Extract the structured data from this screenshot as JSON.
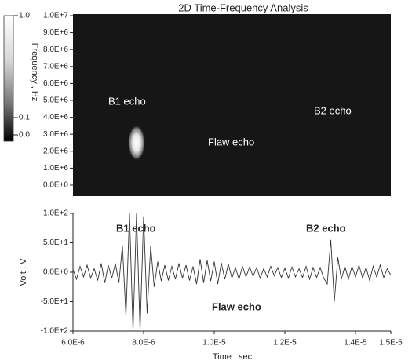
{
  "chart_data": [
    {
      "type": "heatmap",
      "title": "2D Time-Frequency Analysis",
      "xlim": [
        6e-06,
        1.5e-05
      ],
      "ylim": [
        0,
        10000000
      ],
      "yticks": [
        {
          "value": 0,
          "label": "0.0E+0"
        },
        {
          "value": 1000000,
          "label": "1.0E+6"
        },
        {
          "value": 2000000,
          "label": "2.0E+6"
        },
        {
          "value": 3000000,
          "label": "3.0E+6"
        },
        {
          "value": 4000000,
          "label": "4.0E+6"
        },
        {
          "value": 5000000,
          "label": "5.0E+6"
        },
        {
          "value": 6000000,
          "label": "6.0E+6"
        },
        {
          "value": 7000000,
          "label": "7.0E+6"
        },
        {
          "value": 8000000,
          "label": "8.0E+6"
        },
        {
          "value": 9000000,
          "label": "9.0E+6"
        },
        {
          "value": 10000000,
          "label": "1.0E+7"
        }
      ],
      "spots": {
        "x": [
          7.8e-06
        ],
        "y": [
          2500000
        ],
        "values": [
          1.0
        ]
      },
      "colorbar": {
        "label": "Frequency , Hz",
        "ticks": [
          {
            "value": 1,
            "label": "1.0"
          },
          {
            "value": 0.1,
            "label": "0.1"
          },
          {
            "value": 0,
            "label": "0.0"
          }
        ]
      },
      "annotations": [
        "B1 echo",
        "Flaw echo",
        "B2 echo"
      ]
    },
    {
      "type": "line",
      "xlabel": "Time , sec",
      "ylabel": "Volt , V",
      "color": "#333333",
      "xlim": [
        6e-06,
        1.5e-05
      ],
      "ylim": [
        -100,
        100
      ],
      "xticks": [
        {
          "value": 6e-06,
          "label": "6.0E-6"
        },
        {
          "value": 8e-06,
          "label": "8.0E-6"
        },
        {
          "value": 1e-05,
          "label": "1.0E-5"
        },
        {
          "value": 1.2e-05,
          "label": "1.2E-5"
        },
        {
          "value": 1.4e-05,
          "label": "1.4E-5"
        },
        {
          "value": 1.5e-05,
          "label": "1.5E-5"
        }
      ],
      "yticks": [
        {
          "value": -100,
          "label": "-1.0E+2"
        },
        {
          "value": -50,
          "label": "-5.0E+1"
        },
        {
          "value": 0,
          "label": "0.0E+0"
        },
        {
          "value": 50,
          "label": "5.0E+1"
        },
        {
          "value": 100,
          "label": "1.0E+2"
        }
      ],
      "x": [
        6e-06,
        6.1e-06,
        6.2e-06,
        6.3e-06,
        6.4e-06,
        6.5e-06,
        6.6e-06,
        6.7e-06,
        6.8e-06,
        6.9e-06,
        7e-06,
        7.1e-06,
        7.2e-06,
        7.3e-06,
        7.4e-06,
        7.5e-06,
        7.6e-06,
        7.7e-06,
        7.8e-06,
        7.9e-06,
        8e-06,
        8.1e-06,
        8.2e-06,
        8.3e-06,
        8.4e-06,
        8.5e-06,
        8.6e-06,
        8.7e-06,
        8.8e-06,
        8.9e-06,
        9e-06,
        9.1e-06,
        9.2e-06,
        9.3e-06,
        9.4e-06,
        9.5e-06,
        9.6e-06,
        9.7e-06,
        9.8e-06,
        9.9e-06,
        1e-05,
        1.01e-05,
        1.02e-05,
        1.03e-05,
        1.04e-05,
        1.05e-05,
        1.06e-05,
        1.07e-05,
        1.08e-05,
        1.09e-05,
        1.1e-05,
        1.11e-05,
        1.12e-05,
        1.13e-05,
        1.14e-05,
        1.15e-05,
        1.16e-05,
        1.17e-05,
        1.18e-05,
        1.19e-05,
        1.2e-05,
        1.21e-05,
        1.22e-05,
        1.23e-05,
        1.24e-05,
        1.25e-05,
        1.26e-05,
        1.27e-05,
        1.28e-05,
        1.29e-05,
        1.3e-05,
        1.31e-05,
        1.32e-05,
        1.33e-05,
        1.34e-05,
        1.35e-05,
        1.36e-05,
        1.37e-05,
        1.38e-05,
        1.39e-05,
        1.4e-05,
        1.41e-05,
        1.42e-05,
        1.43e-05,
        1.44e-05,
        1.45e-05,
        1.46e-05,
        1.47e-05,
        1.48e-05,
        1.49e-05,
        1.5e-05
      ],
      "values": [
        5,
        -12,
        10,
        -8,
        12,
        -10,
        6,
        -14,
        15,
        -18,
        12,
        -10,
        15,
        -18,
        45,
        -75,
        100,
        -100,
        100,
        -100,
        95,
        -70,
        45,
        -25,
        18,
        -15,
        12,
        -14,
        10,
        -12,
        15,
        -10,
        12,
        -14,
        10,
        -20,
        22,
        -18,
        20,
        -15,
        18,
        -20,
        16,
        -12,
        14,
        -10,
        8,
        -12,
        10,
        -8,
        9,
        -7,
        8,
        -10,
        6,
        -8,
        10,
        -6,
        8,
        -9,
        7,
        -10,
        9,
        -8,
        6,
        -9,
        10,
        -12,
        8,
        -9,
        8,
        -10,
        -20,
        55,
        -50,
        25,
        -12,
        10,
        -12,
        10,
        -8,
        12,
        -10,
        8,
        -14,
        10,
        -8,
        12,
        -9,
        6,
        -5
      ],
      "annotations": [
        "B1 echo",
        "B2 echo",
        "Flaw echo"
      ]
    }
  ]
}
